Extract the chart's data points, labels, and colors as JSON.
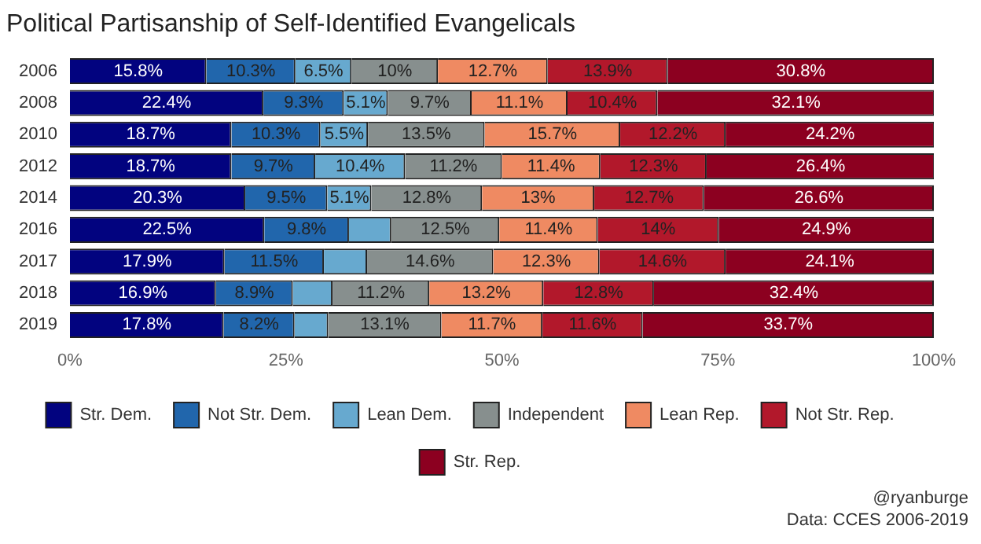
{
  "chart_data": {
    "type": "bar",
    "orientation": "horizontal",
    "stacked": true,
    "title": "Political Partisanship of Self-Identified Evangelicals",
    "categories": [
      "2006",
      "2008",
      "2010",
      "2012",
      "2014",
      "2016",
      "2017",
      "2018",
      "2019"
    ],
    "xlim": [
      0,
      100
    ],
    "xticks": [
      {
        "value": 0,
        "label": "0%"
      },
      {
        "value": 25,
        "label": "25%"
      },
      {
        "value": 50,
        "label": "50%"
      },
      {
        "value": 75,
        "label": "75%"
      },
      {
        "value": 100,
        "label": "100%"
      }
    ],
    "grid": false,
    "legend": "bottom",
    "series": [
      {
        "name": "Str. Dem.",
        "color": "#02037f",
        "values": [
          15.8,
          22.4,
          18.7,
          18.7,
          20.3,
          22.5,
          17.9,
          16.9,
          17.8
        ],
        "value_labels": [
          "15.8%",
          "22.4%",
          "18.7%",
          "18.7%",
          "20.3%",
          "22.5%",
          "17.9%",
          "16.9%",
          "17.8%"
        ]
      },
      {
        "name": "Not Str. Dem.",
        "color": "#2166ac",
        "values": [
          10.3,
          9.3,
          10.3,
          9.7,
          9.5,
          9.8,
          11.5,
          8.9,
          8.2
        ],
        "value_labels": [
          "10.3%",
          "9.3%",
          "10.3%",
          "9.7%",
          "9.5%",
          "9.8%",
          "11.5%",
          "8.9%",
          "8.2%"
        ]
      },
      {
        "name": "Lean Dem.",
        "color": "#67a9cf",
        "values": [
          6.5,
          5.1,
          5.5,
          10.4,
          5.1,
          4.9,
          5.0,
          4.6,
          3.9
        ],
        "value_labels": [
          "6.5%",
          "5.1%",
          "5.5%",
          "10.4%",
          "5.1%",
          null,
          null,
          null,
          null
        ]
      },
      {
        "name": "Independent",
        "color": "#878f8e",
        "values": [
          10,
          9.7,
          13.5,
          11.2,
          12.8,
          12.5,
          14.6,
          11.2,
          13.1
        ],
        "value_labels": [
          "10%",
          "9.7%",
          "13.5%",
          "11.2%",
          "12.8%",
          "12.5%",
          "14.6%",
          "11.2%",
          "13.1%"
        ]
      },
      {
        "name": "Lean Rep.",
        "color": "#ef8a62",
        "values": [
          12.7,
          11.1,
          15.7,
          11.4,
          13,
          11.4,
          12.3,
          13.2,
          11.7
        ],
        "value_labels": [
          "12.7%",
          "11.1%",
          "15.7%",
          "11.4%",
          "13%",
          "11.4%",
          "12.3%",
          "13.2%",
          "11.7%"
        ]
      },
      {
        "name": "Not Str. Rep.",
        "color": "#b2182b",
        "values": [
          13.9,
          10.4,
          12.2,
          12.3,
          12.7,
          14,
          14.6,
          12.8,
          11.6
        ],
        "value_labels": [
          "13.9%",
          "10.4%",
          "12.2%",
          "12.3%",
          "12.7%",
          "14%",
          "14.6%",
          "12.8%",
          "11.6%"
        ]
      },
      {
        "name": "Str. Rep.",
        "color": "#8c0020",
        "values": [
          30.8,
          32.1,
          24.2,
          26.4,
          26.6,
          24.9,
          24.1,
          32.4,
          33.7
        ],
        "value_labels": [
          "30.8%",
          "32.1%",
          "24.2%",
          "26.4%",
          "26.6%",
          "24.9%",
          "24.1%",
          "32.4%",
          "33.7%"
        ]
      }
    ],
    "annotations": [
      "@ryanburge",
      "Data: CCES 2006-2019"
    ]
  }
}
